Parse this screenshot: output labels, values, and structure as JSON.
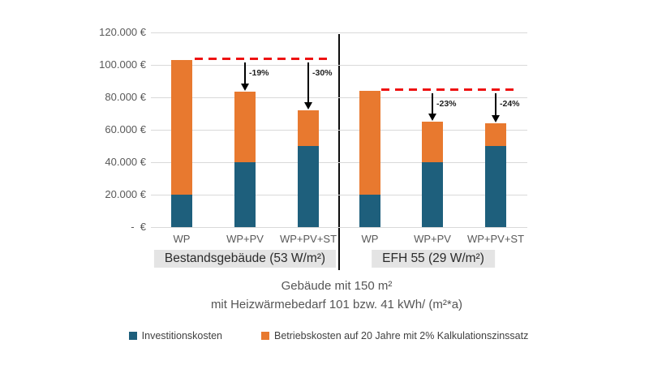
{
  "chart_data": {
    "type": "bar",
    "stacked": true,
    "title": "",
    "subtitle_lines": [
      "Gebäude mit 150 m²",
      "mit Heizwärmebedarf 101 bzw. 41 kWh/ (m²*a)"
    ],
    "y_axis": {
      "min": 0,
      "max": 120000,
      "step": 20000,
      "tick_labels": [
        "-  €",
        "20.000 €",
        "40.000 €",
        "60.000 €",
        "80.000 €",
        "100.000 €",
        "120.000 €"
      ],
      "grid": true
    },
    "groups": [
      {
        "label": "Bestandsgebäude (53 W/m²)",
        "categories": [
          "WP",
          "WP+PV",
          "WP+PV+ST"
        ],
        "series": [
          {
            "name": "Investitionskosten",
            "values": [
              20000,
              40000,
              50000
            ]
          },
          {
            "name": "Betriebskosten auf 20 Jahre mit 2% Kalkulationszinssatz",
            "values": [
              83000,
              43500,
              22000
            ]
          }
        ],
        "totals": [
          103000,
          83500,
          72000
        ],
        "reference_total": 103000,
        "deltas": [
          null,
          "-19%",
          "-30%"
        ]
      },
      {
        "label": "EFH 55 (29 W/m²)",
        "categories": [
          "WP",
          "WP+PV",
          "WP+PV+ST"
        ],
        "series": [
          {
            "name": "Investitionskosten",
            "values": [
              20000,
              40000,
              50000
            ]
          },
          {
            "name": "Betriebskosten auf 20 Jahre mit 2% Kalkulationszinssatz",
            "values": [
              64000,
              25000,
              14000
            ]
          }
        ],
        "totals": [
          84000,
          65000,
          64000
        ],
        "reference_total": 84000,
        "deltas": [
          null,
          "-23%",
          "-24%"
        ]
      }
    ],
    "legend": [
      {
        "label": "Investitionskosten",
        "color": "#1e5f7c"
      },
      {
        "label": "Betriebskosten auf 20 Jahre mit 2% Kalkulationszinssatz",
        "color": "#e8792f"
      }
    ],
    "colors": {
      "investitionskosten": "#1e5f7c",
      "betriebskosten": "#e8792f",
      "reference_dashed_line": "#ee1212",
      "arrow": "#000000",
      "gridline": "#d9d9d9",
      "axis_text": "#595959",
      "group_label_background": "#e4e4e4"
    },
    "legend_position": "bottom"
  }
}
